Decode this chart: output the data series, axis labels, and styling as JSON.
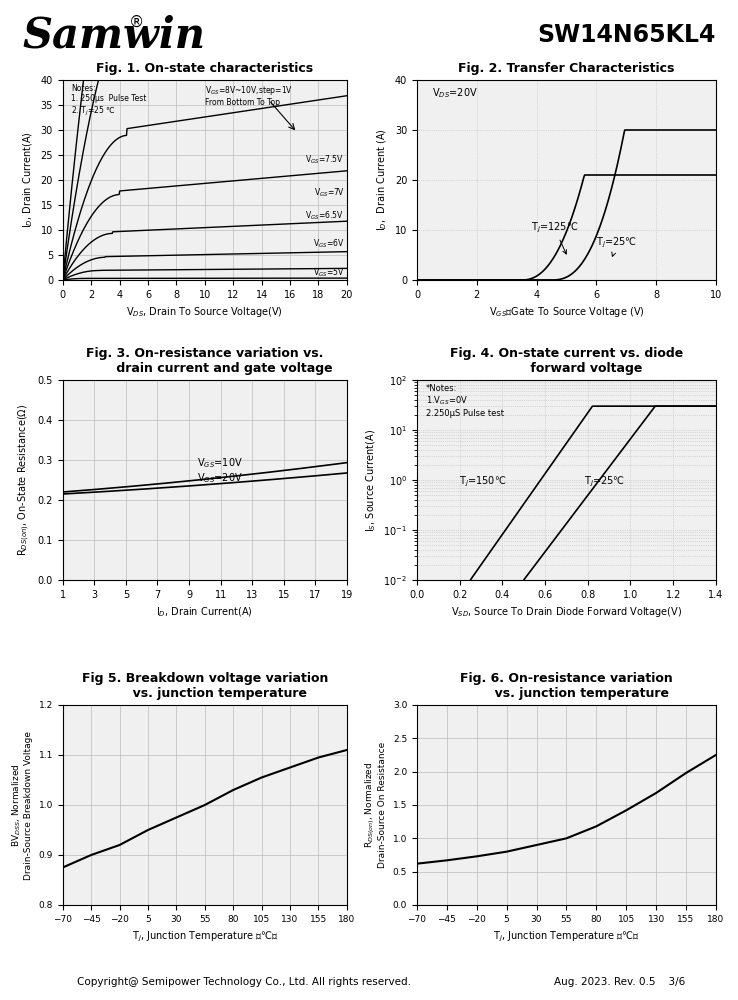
{
  "title_left": "Samwin",
  "title_right": "SW14N65KL4",
  "fig1_title": "Fig. 1. On-state characteristics",
  "fig2_title": "Fig. 2. Transfer Characteristics",
  "fig3_title_l1": "Fig. 3. On-resistance variation vs.",
  "fig3_title_l2": "drain current and gate voltage",
  "fig4_title_l1": "Fig. 4. On-state current vs. diode",
  "fig4_title_l2": "forward voltage",
  "fig5_title_l1": "Fig 5. Breakdown voltage variation",
  "fig5_title_l2": "vs. junction temperature",
  "fig6_title_l1": "Fig. 6. On-resistance variation",
  "fig6_title_l2": "vs. junction temperature",
  "footer": "Copyright@ Semipower Technology Co., Ltd. All rights reserved.",
  "footer_right": "Aug. 2023. Rev. 0.5    3/6",
  "bg_color": "#ffffff",
  "grid_color": "#bbbbbb",
  "line_color": "#000000"
}
